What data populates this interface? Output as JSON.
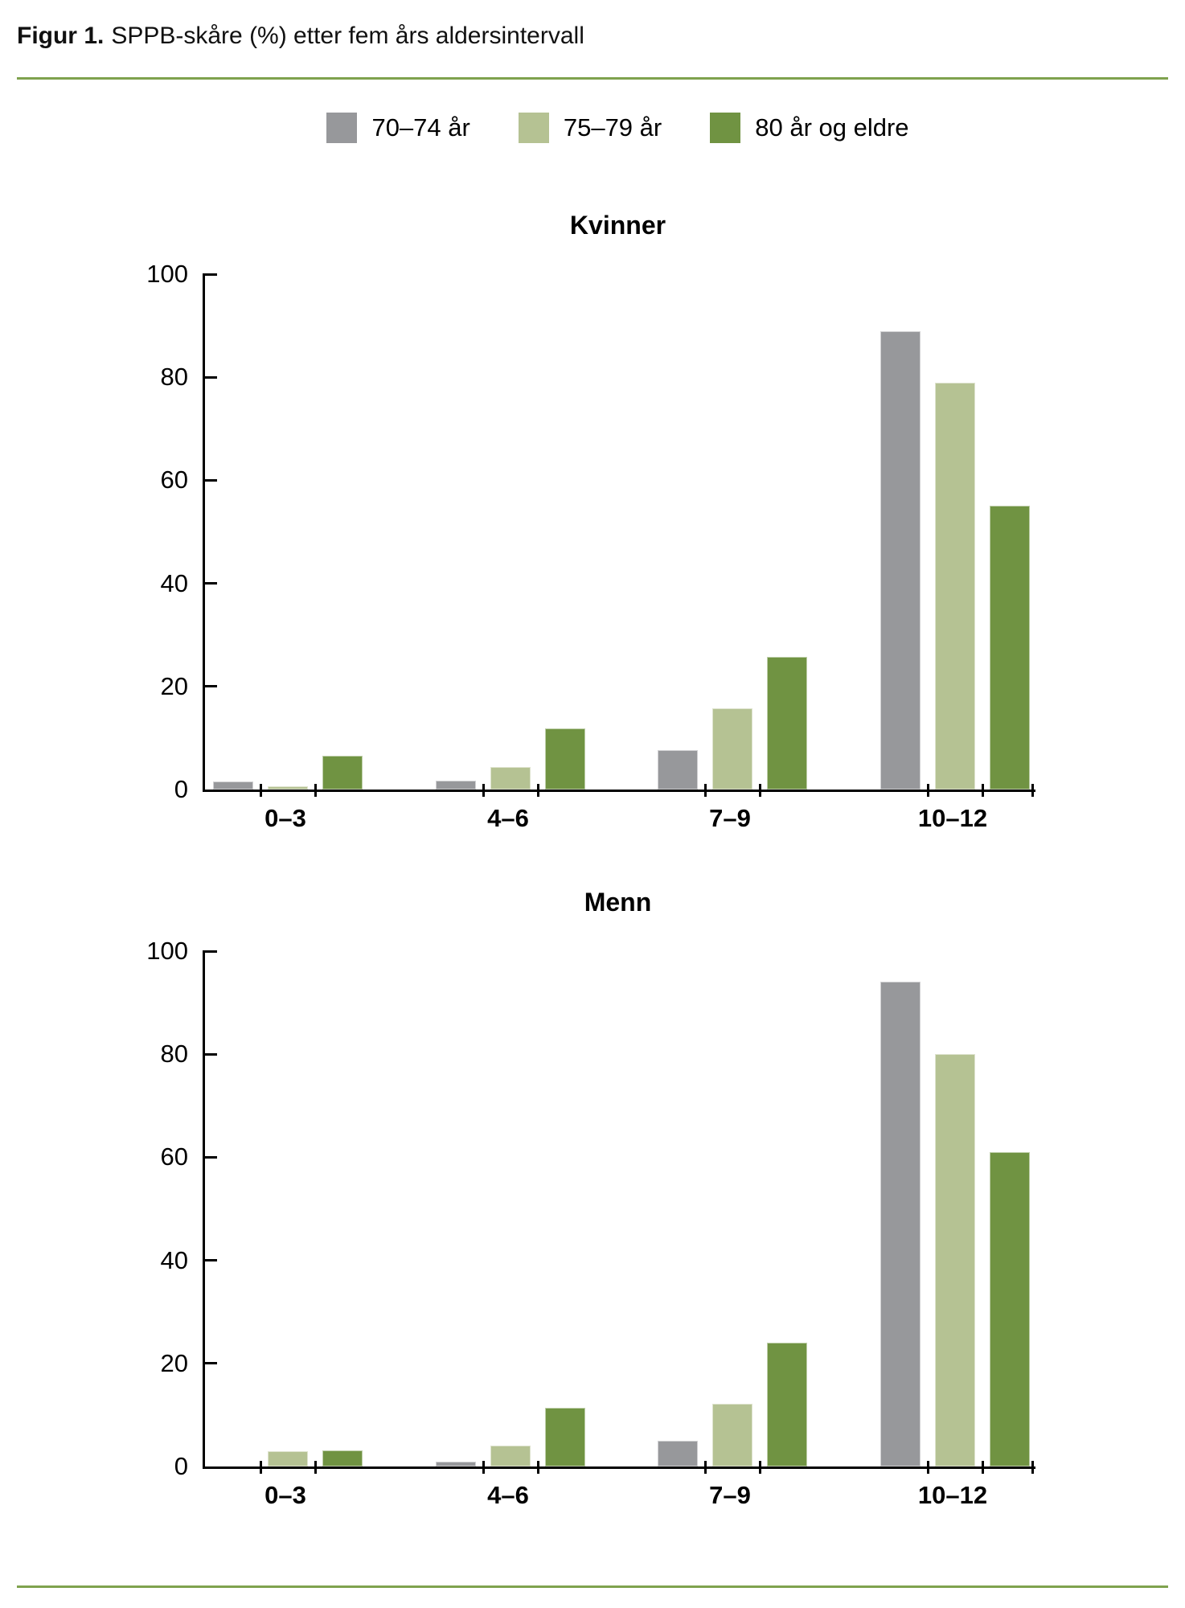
{
  "figure": {
    "title_label": "Figur 1.",
    "title_text": "SPPB-skåre (%) etter fem års aldersintervall"
  },
  "colors": {
    "divider_green": "#7fa24e",
    "axis_black": "#000000",
    "series_gray": "#97989b",
    "series_light_green": "#b5c293",
    "series_dark_green": "#709342"
  },
  "legend": {
    "items": [
      {
        "label": "70–74 år",
        "color": "#97989b"
      },
      {
        "label": "75–79 år",
        "color": "#b5c293"
      },
      {
        "label": "80 år og eldre",
        "color": "#709342"
      }
    ]
  },
  "chart_data": {
    "type": "bar",
    "categories": [
      "0–3",
      "4–6",
      "7–9",
      "10–12"
    ],
    "yticks": [
      100,
      80,
      60,
      40,
      20,
      0
    ],
    "ylim": [
      0,
      100
    ],
    "grid": false,
    "legend_position": "top-center",
    "charts": [
      {
        "title": "Kvinner",
        "series": [
          {
            "name": "70–74 år",
            "color": "#97989b",
            "values": [
              1.5,
              1.7,
              7.7,
              89
            ]
          },
          {
            "name": "75–79 år",
            "color": "#b5c293",
            "values": [
              0.7,
              4.4,
              15.8,
              79
            ]
          },
          {
            "name": "80 år og eldre",
            "color": "#709342",
            "values": [
              6.6,
              11.9,
              25.8,
              55
            ]
          }
        ]
      },
      {
        "title": "Menn",
        "series": [
          {
            "name": "70–74 år",
            "color": "#97989b",
            "values": [
              0,
              0.9,
              5,
              94
            ]
          },
          {
            "name": "75–79 år",
            "color": "#b5c293",
            "values": [
              2.9,
              4.1,
              12.2,
              80
            ]
          },
          {
            "name": "80 år og eldre",
            "color": "#709342",
            "values": [
              3.1,
              11.4,
              24,
              61
            ]
          }
        ]
      }
    ]
  }
}
